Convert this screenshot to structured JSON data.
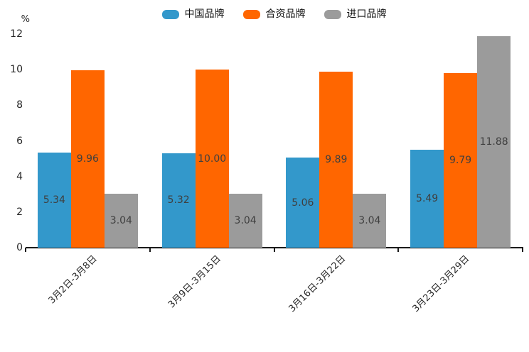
{
  "legend": {
    "position": "top",
    "items": [
      {
        "label": "中国品牌",
        "color": "#3398CB"
      },
      {
        "label": "合资品牌",
        "color": "#FF6600"
      },
      {
        "label": "进口品牌",
        "color": "#9B9B9B"
      }
    ]
  },
  "y_axis": {
    "unit": "%",
    "ticks": [
      0,
      2,
      4,
      6,
      8,
      10,
      12
    ]
  },
  "chart_data": {
    "type": "bar",
    "title": "",
    "xlabel": "",
    "ylabel": "%",
    "ylim": [
      0,
      12
    ],
    "grid": false,
    "legend_position": "top",
    "value_labels": "inside-center, 2 decimals",
    "categories": [
      "3月2日-3月8日",
      "3月9日-3月15日",
      "3月16日-3月22日",
      "3月23日-3月29日"
    ],
    "series": [
      {
        "name": "中国品牌",
        "color": "#3398CB",
        "values": [
          5.34,
          5.32,
          5.06,
          5.49
        ]
      },
      {
        "name": "合资品牌",
        "color": "#FF6600",
        "values": [
          9.96,
          10.0,
          9.89,
          9.79
        ]
      },
      {
        "name": "进口品牌",
        "color": "#9B9B9B",
        "values": [
          3.04,
          3.04,
          3.04,
          11.88
        ]
      }
    ]
  }
}
